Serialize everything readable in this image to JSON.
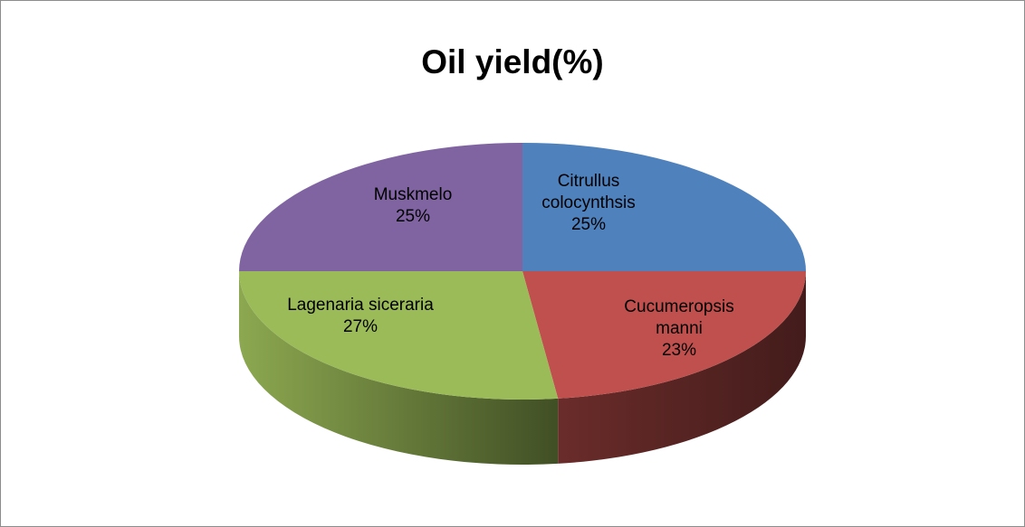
{
  "chart_data": {
    "type": "pie3d",
    "title": "Oil yield(%)",
    "categories": [
      "Citrullus colocynthsis",
      "Cucumeropsis manni",
      "Lagenaria siceraria",
      "Muskmelo"
    ],
    "values": [
      25,
      23,
      27,
      25
    ],
    "value_labels": [
      "25%",
      "23%",
      "27%",
      "25%"
    ],
    "colors": [
      "#4f81bd",
      "#c0504d",
      "#9bbb59",
      "#8064a2"
    ]
  }
}
